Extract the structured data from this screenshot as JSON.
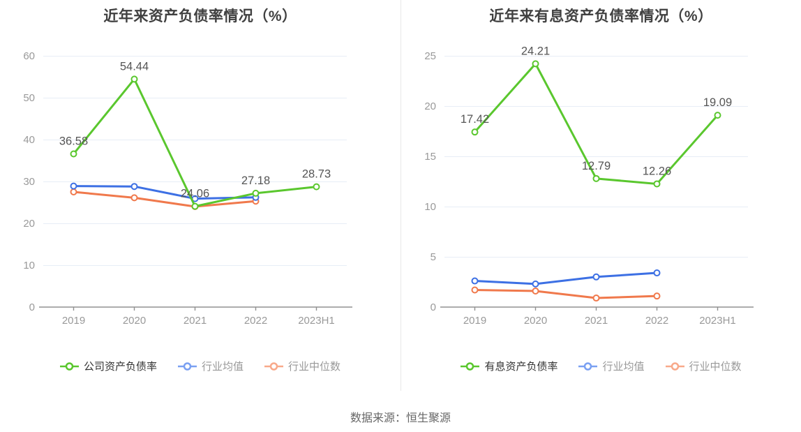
{
  "page": {
    "source_note": "数据来源：恒生聚源"
  },
  "style": {
    "grid_color": "#e7edf6",
    "axis_line_color": "#909090",
    "axis_label_color": "#999999",
    "data_label_color": "#555555",
    "title_color": "#404040",
    "divider_color": "#e8e8e8",
    "background": "#ffffff"
  },
  "chart_data": [
    {
      "key": "asset-liability-ratio",
      "type": "line",
      "title": "近年来资产负债率情况（%）",
      "categories": [
        "2019",
        "2020",
        "2021",
        "2022",
        "2023H1"
      ],
      "y_axis": {
        "min": 0,
        "max": 60,
        "step": 10,
        "ticks": [
          0,
          10,
          20,
          30,
          40,
          50,
          60
        ]
      },
      "grid": true,
      "legend_position": "bottom",
      "series": [
        {
          "key": "company-asset-liability-ratio",
          "name": "公司资产负债率",
          "color": "#5ac72e",
          "legend_color": "#5ac72e",
          "label_color": "#333333",
          "values": [
            36.58,
            54.44,
            24.06,
            27.18,
            28.73
          ],
          "labels": [
            "36.58",
            "54.44",
            "24.06",
            "27.18",
            "28.73"
          ]
        },
        {
          "key": "industry-average",
          "name": "行业均值",
          "color": "#3d70e4",
          "legend_color": "#7aa0f2",
          "label_color": "#999999",
          "values": [
            28.9,
            28.8,
            25.9,
            26.2
          ],
          "labels": null
        },
        {
          "key": "industry-median",
          "name": "行业中位数",
          "color": "#f0794c",
          "legend_color": "#f8a98a",
          "label_color": "#999999",
          "values": [
            27.5,
            26.1,
            24.0,
            25.3
          ],
          "labels": null
        }
      ]
    },
    {
      "key": "interest-bearing-ratio",
      "type": "line",
      "title": "近年来有息资产负债率情况（%）",
      "categories": [
        "2019",
        "2020",
        "2021",
        "2022",
        "2023H1"
      ],
      "y_axis": {
        "min": 0,
        "max": 25,
        "step": 5,
        "ticks": [
          0,
          5,
          10,
          15,
          20,
          25
        ]
      },
      "grid": true,
      "legend_position": "bottom",
      "series": [
        {
          "key": "interest-bearing-asset-liability-ratio",
          "name": "有息资产负债率",
          "color": "#5ac72e",
          "legend_color": "#5ac72e",
          "label_color": "#333333",
          "values": [
            17.42,
            24.21,
            12.79,
            12.26,
            19.09
          ],
          "labels": [
            "17.42",
            "24.21",
            "12.79",
            "12.26",
            "19.09"
          ]
        },
        {
          "key": "industry-average",
          "name": "行业均值",
          "color": "#3d70e4",
          "legend_color": "#7aa0f2",
          "label_color": "#999999",
          "values": [
            2.6,
            2.3,
            3.0,
            3.4
          ],
          "labels": null
        },
        {
          "key": "industry-median",
          "name": "行业中位数",
          "color": "#f0794c",
          "legend_color": "#f8a98a",
          "label_color": "#999999",
          "values": [
            1.7,
            1.6,
            0.9,
            1.1
          ],
          "labels": null
        }
      ]
    }
  ]
}
